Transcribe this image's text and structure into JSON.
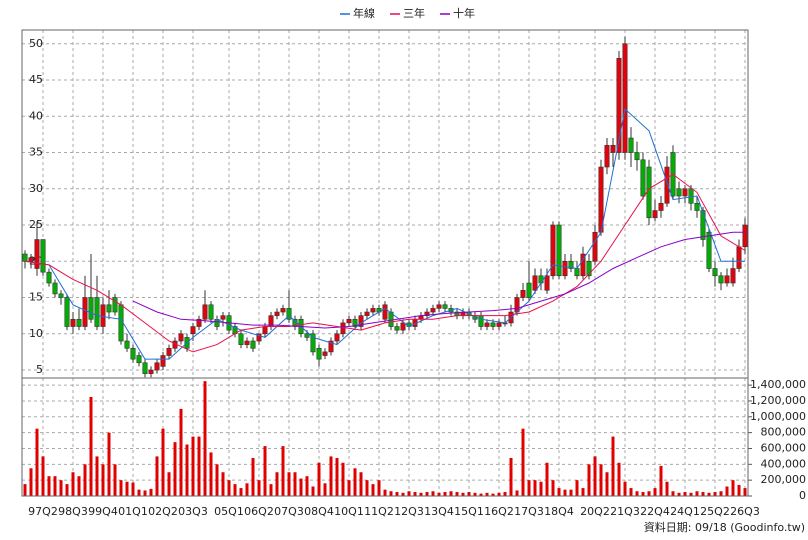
{
  "chart_data": {
    "type": "candlestick",
    "legend": "top",
    "grid": true,
    "footnote": "資料日期: 09/18 (Goodinfo.tw)",
    "up_color": "#e8000b",
    "down_color": "#00b000",
    "categories": [
      null,
      null,
      null,
      "97Q2",
      null,
      null,
      null,
      null,
      "98Q3",
      null,
      null,
      null,
      null,
      "99Q4",
      null,
      null,
      null,
      null,
      "01Q1",
      null,
      null,
      null,
      null,
      "02Q2",
      null,
      null,
      null,
      null,
      "03Q3",
      null,
      null,
      null,
      null,
      null,
      "05Q1",
      null,
      null,
      null,
      null,
      "06Q2",
      null,
      null,
      null,
      null,
      "07Q3",
      null,
      null,
      null,
      null,
      "08Q4",
      null,
      null,
      null,
      null,
      "10Q1",
      null,
      null,
      null,
      null,
      "11Q2",
      null,
      null,
      null,
      null,
      "12Q3",
      null,
      null,
      null,
      null,
      "13Q4",
      null,
      null,
      null,
      null,
      "15Q1",
      null,
      null,
      null,
      null,
      "16Q2",
      null,
      null,
      null,
      null,
      "17Q3",
      null,
      null,
      null,
      null,
      "18Q4",
      null,
      null,
      null,
      null,
      null,
      "20Q2",
      null,
      null,
      null,
      null,
      "21Q3",
      null,
      null,
      null,
      null,
      "22Q4",
      null,
      null,
      null,
      null,
      "24Q1",
      null,
      null,
      null,
      null,
      "25Q2",
      null,
      null,
      null,
      null,
      "26Q3"
    ],
    "open": [
      21,
      20,
      19,
      23,
      18.5,
      17,
      15.5,
      15,
      11,
      12,
      11,
      15,
      15,
      11,
      14,
      15,
      14,
      9,
      8,
      7,
      6,
      4.5,
      5,
      5.5,
      7,
      8,
      9,
      9.5,
      10,
      11,
      12,
      14,
      12,
      12,
      12.5,
      11,
      10,
      8.5,
      9,
      9,
      10,
      11,
      12.5,
      13,
      13.5,
      12,
      12,
      10,
      10,
      8,
      7,
      7.5,
      9,
      10,
      11.5,
      12,
      11,
      12.5,
      13,
      13.5,
      12,
      13,
      11,
      10.5,
      11.5,
      11,
      12,
      12.5,
      13,
      13.5,
      14,
      13.5,
      13,
      12.5,
      13,
      12.5,
      12.5,
      11,
      11.5,
      11,
      11.5,
      11.5,
      13,
      15,
      17,
      16,
      18,
      16,
      18,
      25,
      18,
      20,
      19,
      18,
      20,
      20,
      24,
      33,
      35,
      35,
      35,
      37,
      35,
      34,
      33,
      26,
      27,
      28,
      35,
      30,
      29,
      30,
      28,
      27,
      24,
      19,
      18,
      17,
      17,
      19,
      22
    ],
    "high": [
      21.5,
      21,
      25.5,
      23,
      19,
      17.5,
      16,
      15.5,
      13,
      13.5,
      18,
      21,
      18,
      15,
      16,
      15.5,
      14.5,
      10,
      8.5,
      7.5,
      6.5,
      5.5,
      6.5,
      7.5,
      8.5,
      9.5,
      10.5,
      10,
      11.5,
      12.5,
      16,
      14.5,
      12.5,
      13,
      13,
      11.5,
      10.5,
      9.5,
      9.5,
      10,
      11.5,
      13,
      13.5,
      14,
      16,
      12.5,
      12.5,
      10.5,
      10.5,
      8.5,
      8,
      9.5,
      10.5,
      12,
      12.5,
      12.5,
      13,
      13.5,
      14,
      14,
      14.5,
      13.5,
      11.5,
      12,
      12,
      12.5,
      13,
      13.5,
      14,
      14.5,
      14.5,
      14,
      13.5,
      13.5,
      13.5,
      13,
      13,
      12,
      12,
      12,
      12.5,
      14,
      15.5,
      17,
      20,
      19,
      19,
      19,
      25.5,
      25.5,
      21,
      21,
      20,
      22,
      21,
      25,
      34,
      37,
      37,
      49,
      51,
      38.5,
      36.5,
      35,
      34,
      28.5,
      29,
      34.5,
      36,
      31,
      30.5,
      30.5,
      29,
      27.5,
      24.5,
      20,
      18.5,
      19,
      20.5,
      23,
      26
    ],
    "low": [
      19,
      19,
      18,
      18,
      16.5,
      15,
      14,
      10.5,
      10,
      10.5,
      10.5,
      11.5,
      10.5,
      10,
      12,
      12.5,
      8.5,
      7.5,
      6,
      5.5,
      4,
      4,
      4.5,
      5,
      6.5,
      7.5,
      8.5,
      7.5,
      9,
      10.5,
      11.5,
      11.5,
      10.5,
      11,
      10,
      9.5,
      8,
      8,
      7.5,
      8.5,
      9.5,
      10.5,
      12,
      12.5,
      11.5,
      10.5,
      9.5,
      9,
      7,
      5.5,
      6.5,
      7,
      8.5,
      9.5,
      11,
      10.5,
      10.5,
      12,
      12.5,
      12.5,
      11.5,
      10.5,
      10,
      10,
      10.5,
      10.5,
      11.5,
      12,
      12.5,
      13,
      13,
      12.5,
      12,
      12,
      12,
      11.5,
      10.5,
      10.5,
      10.5,
      10.5,
      11,
      11,
      12.5,
      14.5,
      14.5,
      15.5,
      16,
      15.5,
      17.5,
      17.5,
      17.5,
      18.5,
      17.5,
      17.5,
      17.5,
      19.5,
      23.5,
      32,
      33,
      34,
      34,
      33,
      32.5,
      28.5,
      25,
      25.5,
      26,
      27.5,
      28.5,
      28,
      28,
      27,
      26,
      22,
      18.5,
      16.5,
      16,
      16.5,
      16.5,
      18.5,
      21
    ],
    "close": [
      20,
      20.5,
      23,
      18.5,
      17,
      15.5,
      15,
      11,
      12,
      11,
      15,
      12,
      11,
      14,
      13,
      13,
      9,
      8,
      6.5,
      6,
      4.5,
      5,
      6,
      7,
      8,
      9,
      10,
      8,
      11,
      12,
      14,
      12,
      11,
      12.5,
      10.5,
      10,
      8.5,
      9,
      8,
      10,
      11,
      12.5,
      13,
      13.5,
      12,
      11,
      10,
      9.5,
      7.5,
      6.5,
      7.5,
      9,
      10,
      11.5,
      12,
      11,
      12.5,
      13,
      13.5,
      13,
      14,
      11,
      10.5,
      11.5,
      11,
      12,
      12.5,
      13,
      13.5,
      14,
      13.5,
      13,
      12.5,
      13,
      12.5,
      12,
      11,
      11.5,
      11,
      11.5,
      11.5,
      13,
      15,
      16,
      15,
      18,
      17,
      18,
      25,
      18,
      20,
      19,
      18,
      21,
      18,
      24,
      33,
      36,
      36,
      48,
      50,
      35,
      34,
      29,
      26,
      27,
      28,
      33,
      29,
      29,
      30,
      28,
      27,
      23,
      19,
      18,
      17,
      18,
      19,
      22,
      25
    ],
    "ylim": [
      3.9,
      51.9
    ],
    "yticks": [
      5,
      10,
      15,
      20,
      25,
      30,
      35,
      40,
      45,
      50
    ],
    "lines": [
      {
        "name": "年線",
        "color": "#1f6fd6",
        "x": [
          0,
          4,
          8,
          12,
          16,
          20,
          24,
          28,
          32,
          36,
          40,
          44,
          48,
          52,
          56,
          60,
          64,
          68,
          72,
          76,
          80,
          84,
          88,
          92,
          96,
          100,
          104,
          108,
          112,
          116,
          120
        ],
        "values": [
          20,
          19.5,
          14,
          12.5,
          12,
          6.5,
          6.5,
          9.5,
          12,
          10.5,
          9.5,
          12.5,
          9.5,
          8.5,
          11.5,
          13.5,
          11,
          12.5,
          13.5,
          12,
          11.5,
          14.5,
          19.5,
          19,
          24,
          41,
          38,
          28.5,
          29,
          20,
          20
        ]
      },
      {
        "name": "三年",
        "color": "#e8114b",
        "x": [
          0,
          4,
          8,
          12,
          16,
          20,
          24,
          28,
          32,
          36,
          40,
          44,
          48,
          52,
          56,
          60,
          64,
          68,
          72,
          76,
          80,
          84,
          88,
          92,
          96,
          100,
          104,
          108,
          112,
          116,
          120
        ],
        "values": [
          20,
          19.5,
          17.5,
          16,
          14,
          11.5,
          9,
          7.5,
          8.5,
          10.5,
          11,
          11,
          11.5,
          11,
          10.5,
          11.5,
          12,
          12,
          12.5,
          12.5,
          12.5,
          13,
          14.5,
          16.5,
          20,
          25,
          30,
          32,
          29.5,
          23.5,
          21.5
        ]
      },
      {
        "name": "十年",
        "color": "#8b00c9",
        "x": [
          18,
          22,
          26,
          30,
          34,
          38,
          42,
          46,
          50,
          54,
          58,
          62,
          66,
          70,
          74,
          78,
          82,
          86,
          90,
          94,
          98,
          102,
          106,
          110,
          114,
          118,
          120
        ],
        "values": [
          14.5,
          13,
          12,
          11.8,
          11.5,
          11.2,
          11.2,
          11,
          10.8,
          11,
          11.5,
          12,
          12.5,
          12.8,
          13,
          13.2,
          13.5,
          14.5,
          15.5,
          17,
          19,
          20.5,
          22,
          23,
          23.5,
          24,
          24
        ]
      }
    ],
    "volume": {
      "color": "#e00000",
      "ylim": [
        0,
        1490000
      ],
      "yticks": [
        0,
        {
          "value": 200000,
          "label": "200,000"
        },
        {
          "value": 400000,
          "label": "400,000"
        },
        {
          "value": 600000,
          "label": "600,000"
        },
        {
          "value": 800000,
          "label": "800,000"
        },
        {
          "value": 1000000,
          "label": "1,000,000"
        },
        {
          "value": 1200000,
          "label": "1,200,000"
        },
        {
          "value": 1400000,
          "label": "1,400,000"
        }
      ],
      "values": [
        150000,
        350000,
        850000,
        500000,
        250000,
        250000,
        200000,
        150000,
        300000,
        250000,
        400000,
        1250000,
        500000,
        400000,
        800000,
        400000,
        200000,
        180000,
        170000,
        80000,
        70000,
        90000,
        500000,
        850000,
        300000,
        680000,
        1100000,
        650000,
        750000,
        750000,
        1450000,
        550000,
        400000,
        300000,
        200000,
        150000,
        100000,
        160000,
        480000,
        200000,
        630000,
        150000,
        300000,
        630000,
        300000,
        300000,
        220000,
        250000,
        120000,
        420000,
        160000,
        500000,
        480000,
        420000,
        200000,
        350000,
        300000,
        200000,
        150000,
        200000,
        80000,
        60000,
        50000,
        40000,
        60000,
        50000,
        40000,
        50000,
        60000,
        40000,
        50000,
        60000,
        50000,
        40000,
        50000,
        40000,
        30000,
        40000,
        30000,
        40000,
        50000,
        480000,
        70000,
        850000,
        200000,
        200000,
        180000,
        420000,
        200000,
        100000,
        80000,
        80000,
        200000,
        100000,
        400000,
        500000,
        400000,
        300000,
        750000,
        420000,
        180000,
        100000,
        60000,
        50000,
        60000,
        100000,
        380000,
        180000,
        60000,
        40000,
        50000,
        40000,
        60000,
        50000,
        40000,
        50000,
        60000,
        120000,
        200000,
        140000,
        100000
      ]
    }
  }
}
